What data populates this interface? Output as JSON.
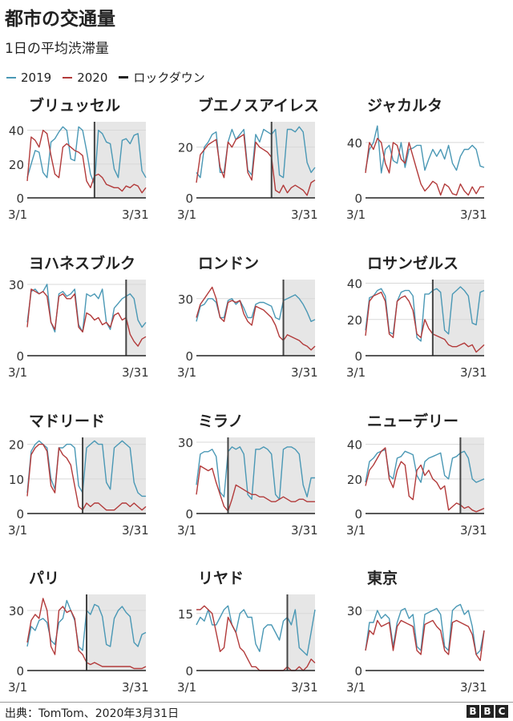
{
  "title": "都市の交通量",
  "subtitle": "1日の平均渋滞量",
  "legend": {
    "items": [
      {
        "label": "2019",
        "color": "#4a98b5"
      },
      {
        "label": "2020",
        "color": "#b23a3a"
      },
      {
        "label": "ロックダウン",
        "color": "#222222"
      }
    ]
  },
  "source": "出典：TomTom、2020年3月31日",
  "logo": [
    "B",
    "B",
    "C"
  ],
  "colors": {
    "y2019": "#4a98b5",
    "y2020": "#b23a3a",
    "lockdown": "#444444",
    "shade": "#e6e6e6"
  },
  "chart_data": [
    {
      "type": "line",
      "title": "ブリュッセル",
      "x_start": "3/1",
      "x_end": "3/31",
      "ylim": [
        0,
        45
      ],
      "yticks": [
        0,
        20,
        40
      ],
      "lockdown_day": 18,
      "series": [
        {
          "name": "2019",
          "values": [
            12,
            20,
            28,
            27,
            15,
            12,
            33,
            35,
            39,
            42,
            40,
            23,
            22,
            42,
            40,
            28,
            14,
            8,
            40,
            38,
            33,
            32,
            17,
            12,
            34,
            35,
            32,
            37,
            38,
            16,
            12
          ]
        },
        {
          "name": "2020",
          "values": [
            10,
            36,
            34,
            30,
            40,
            38,
            25,
            14,
            12,
            30,
            32,
            30,
            28,
            27,
            25,
            10,
            6,
            13,
            14,
            12,
            8,
            7,
            6,
            6,
            4,
            7,
            6,
            8,
            7,
            3,
            6
          ]
        }
      ]
    },
    {
      "type": "line",
      "title": "ブエノスアイレス",
      "x_start": "3/1",
      "x_end": "3/31",
      "ylim": [
        0,
        30
      ],
      "yticks": [
        0,
        20
      ],
      "lockdown_day": 20,
      "series": [
        {
          "name": "2019",
          "values": [
            10,
            8,
            20,
            22,
            25,
            26,
            10,
            10,
            22,
            27,
            23,
            25,
            27,
            11,
            9,
            25,
            22,
            27,
            26,
            25,
            27,
            9,
            8,
            27,
            27,
            26,
            28,
            26,
            14,
            10,
            12
          ]
        },
        {
          "name": "2020",
          "values": [
            6,
            17,
            19,
            21,
            22,
            23,
            12,
            8,
            22,
            20,
            23,
            24,
            25,
            10,
            7,
            22,
            20,
            19,
            18,
            16,
            3,
            2,
            5,
            2,
            4,
            5,
            4,
            3,
            1,
            6,
            7
          ]
        }
      ]
    },
    {
      "type": "line",
      "title": "ジャカルタ",
      "x_start": "3/1",
      "x_end": "3/31",
      "ylim": [
        0,
        55
      ],
      "yticks": [
        0,
        40
      ],
      "series": [
        {
          "name": "2019",
          "values": [
            20,
            35,
            40,
            52,
            18,
            35,
            38,
            27,
            25,
            40,
            22,
            35,
            36,
            38,
            38,
            20,
            28,
            35,
            30,
            35,
            28,
            38,
            25,
            20,
            30,
            35,
            35,
            38,
            35,
            23,
            22
          ]
        },
        {
          "name": "2020",
          "values": [
            18,
            40,
            35,
            43,
            40,
            25,
            18,
            40,
            38,
            28,
            25,
            40,
            30,
            20,
            10,
            5,
            8,
            12,
            10,
            2,
            10,
            8,
            3,
            2,
            10,
            5,
            2,
            8,
            3,
            8,
            8
          ]
        }
      ]
    },
    {
      "type": "line",
      "title": "ヨハネスブルク",
      "x_start": "3/1",
      "x_end": "3/31",
      "ylim": [
        0,
        32
      ],
      "yticks": [
        0,
        30
      ],
      "lockdown_day": 26,
      "series": [
        {
          "name": "2019",
          "values": [
            14,
            27,
            28,
            26,
            27,
            30,
            14,
            10,
            26,
            27,
            25,
            26,
            28,
            13,
            10,
            26,
            25,
            26,
            24,
            28,
            14,
            11,
            20,
            22,
            24,
            25,
            26,
            24,
            15,
            12,
            14
          ]
        },
        {
          "name": "2020",
          "values": [
            12,
            28,
            27,
            26,
            27,
            25,
            14,
            11,
            25,
            26,
            24,
            24,
            26,
            12,
            10,
            18,
            17,
            15,
            16,
            13,
            14,
            12,
            17,
            18,
            15,
            16,
            9,
            6,
            4,
            7,
            8
          ]
        }
      ]
    },
    {
      "type": "line",
      "title": "ロンドン",
      "x_start": "3/1",
      "x_end": "3/31",
      "ylim": [
        0,
        40
      ],
      "yticks": [
        0,
        30
      ],
      "lockdown_day": 23,
      "series": [
        {
          "name": "2019",
          "values": [
            18,
            26,
            27,
            30,
            30,
            28,
            20,
            20,
            29,
            30,
            27,
            29,
            25,
            20,
            20,
            27,
            28,
            28,
            27,
            26,
            20,
            19,
            29,
            30,
            31,
            32,
            30,
            27,
            23,
            18,
            19
          ]
        },
        {
          "name": "2020",
          "values": [
            20,
            27,
            30,
            33,
            36,
            30,
            20,
            18,
            28,
            29,
            28,
            29,
            22,
            18,
            16,
            26,
            25,
            24,
            22,
            20,
            16,
            10,
            8,
            11,
            10,
            9,
            8,
            6,
            5,
            3,
            5
          ]
        }
      ]
    },
    {
      "type": "line",
      "title": "ロサンゼルス",
      "x_start": "3/1",
      "x_end": "3/31",
      "ylim": [
        0,
        42
      ],
      "yticks": [
        0,
        20,
        40
      ],
      "lockdown_day": 18,
      "series": [
        {
          "name": "2019",
          "values": [
            14,
            32,
            33,
            36,
            37,
            33,
            13,
            12,
            30,
            35,
            36,
            36,
            33,
            10,
            8,
            34,
            34,
            36,
            37,
            35,
            14,
            12,
            34,
            36,
            38,
            36,
            33,
            18,
            17,
            35,
            36
          ]
        },
        {
          "name": "2020",
          "values": [
            11,
            30,
            33,
            34,
            35,
            30,
            12,
            10,
            30,
            32,
            33,
            30,
            25,
            12,
            10,
            20,
            15,
            12,
            11,
            10,
            9,
            6,
            5,
            5,
            6,
            7,
            5,
            6,
            2,
            4,
            6
          ]
        }
      ]
    },
    {
      "type": "line",
      "title": "マドリード",
      "x_start": "3/1",
      "x_end": "3/31",
      "ylim": [
        0,
        22
      ],
      "yticks": [
        0,
        10,
        20
      ],
      "lockdown_day": 15,
      "series": [
        {
          "name": "2019",
          "values": [
            6,
            18,
            20,
            21,
            20,
            19,
            10,
            7,
            19,
            19,
            20,
            20,
            19,
            8,
            6,
            19,
            20,
            21,
            20,
            20,
            9,
            7,
            19,
            20,
            21,
            20,
            19,
            9,
            6,
            5,
            5
          ]
        },
        {
          "name": "2020",
          "values": [
            5,
            17,
            19,
            20,
            20,
            18,
            8,
            6,
            19,
            17,
            16,
            14,
            8,
            2,
            1,
            3,
            2,
            3,
            3,
            2,
            1,
            1,
            1,
            2,
            3,
            3,
            2,
            3,
            2,
            1,
            2
          ]
        }
      ]
    },
    {
      "type": "line",
      "title": "ミラノ",
      "x_start": "3/1",
      "x_end": "3/31",
      "ylim": [
        0,
        32
      ],
      "yticks": [
        0,
        30
      ],
      "lockdown_day": 9,
      "series": [
        {
          "name": "2019",
          "values": [
            12,
            25,
            26,
            26,
            27,
            24,
            9,
            7,
            26,
            28,
            27,
            28,
            25,
            8,
            6,
            27,
            27,
            28,
            27,
            25,
            8,
            6,
            27,
            28,
            28,
            27,
            25,
            12,
            7,
            15,
            15
          ]
        },
        {
          "name": "2020",
          "values": [
            8,
            20,
            19,
            18,
            19,
            13,
            8,
            3,
            1,
            6,
            12,
            11,
            10,
            9,
            8,
            8,
            7,
            7,
            6,
            5,
            5,
            6,
            7,
            6,
            5,
            5,
            6,
            6,
            5,
            5,
            5
          ]
        }
      ]
    },
    {
      "type": "line",
      "title": "ニューデリー",
      "x_start": "3/1",
      "x_end": "3/31",
      "ylim": [
        0,
        44
      ],
      "yticks": [
        0,
        20,
        40
      ],
      "lockdown_day": 25,
      "series": [
        {
          "name": "2019",
          "values": [
            18,
            30,
            32,
            35,
            36,
            37,
            22,
            20,
            32,
            33,
            36,
            35,
            34,
            22,
            18,
            30,
            32,
            33,
            34,
            35,
            22,
            20,
            32,
            33,
            35,
            36,
            32,
            20,
            18,
            19,
            20
          ]
        },
        {
          "name": "2020",
          "values": [
            16,
            25,
            28,
            32,
            36,
            38,
            20,
            15,
            25,
            30,
            28,
            10,
            8,
            25,
            28,
            22,
            25,
            20,
            18,
            14,
            16,
            2,
            4,
            6,
            5,
            3,
            4,
            2,
            1,
            2,
            3
          ]
        }
      ]
    },
    {
      "type": "line",
      "title": "パリ",
      "x_start": "3/1",
      "x_end": "3/31",
      "ylim": [
        0,
        38
      ],
      "yticks": [
        0,
        30
      ],
      "lockdown_day": 16,
      "series": [
        {
          "name": "2019",
          "values": [
            12,
            22,
            20,
            25,
            26,
            24,
            15,
            13,
            24,
            26,
            35,
            30,
            25,
            12,
            10,
            30,
            28,
            33,
            32,
            27,
            13,
            12,
            26,
            30,
            32,
            29,
            27,
            14,
            12,
            18,
            19
          ]
        },
        {
          "name": "2020",
          "values": [
            14,
            25,
            28,
            26,
            36,
            30,
            12,
            8,
            30,
            32,
            29,
            30,
            26,
            10,
            8,
            4,
            3,
            4,
            3,
            2,
            2,
            2,
            2,
            2,
            2,
            2,
            2,
            1,
            1,
            1,
            2
          ]
        }
      ]
    },
    {
      "type": "line",
      "title": "リヤド",
      "x_start": "3/1",
      "x_end": "3/31",
      "ylim": [
        0,
        20
      ],
      "yticks": [
        0,
        15
      ],
      "lockdown_day": 24,
      "series": [
        {
          "name": "2019",
          "values": [
            12,
            14,
            13,
            16,
            12,
            12,
            14,
            16,
            17,
            12,
            10,
            15,
            16,
            14,
            14,
            7,
            5,
            11,
            12,
            12,
            10,
            8,
            13,
            14,
            12,
            16,
            6,
            5,
            4,
            10,
            16
          ]
        },
        {
          "name": "2020",
          "values": [
            16,
            16,
            17,
            16,
            15,
            10,
            5,
            6,
            14,
            12,
            10,
            6,
            5,
            3,
            1,
            1,
            0,
            0,
            0,
            0,
            0,
            0,
            0,
            1,
            0,
            0,
            1,
            0,
            1,
            3,
            2
          ]
        }
      ]
    },
    {
      "type": "line",
      "title": "東京",
      "x_start": "3/1",
      "x_end": "3/31",
      "ylim": [
        0,
        38
      ],
      "yticks": [
        0,
        30
      ],
      "series": [
        {
          "name": "2019",
          "values": [
            10,
            24,
            24,
            30,
            26,
            28,
            26,
            12,
            24,
            30,
            31,
            26,
            28,
            12,
            10,
            28,
            29,
            30,
            31,
            28,
            12,
            10,
            30,
            32,
            33,
            28,
            30,
            22,
            8,
            10,
            20
          ]
        },
        {
          "name": "2020",
          "values": [
            10,
            20,
            18,
            25,
            22,
            23,
            24,
            10,
            22,
            25,
            24,
            23,
            22,
            10,
            8,
            23,
            24,
            25,
            22,
            20,
            10,
            8,
            24,
            25,
            24,
            23,
            22,
            18,
            8,
            5,
            20
          ]
        }
      ]
    }
  ]
}
